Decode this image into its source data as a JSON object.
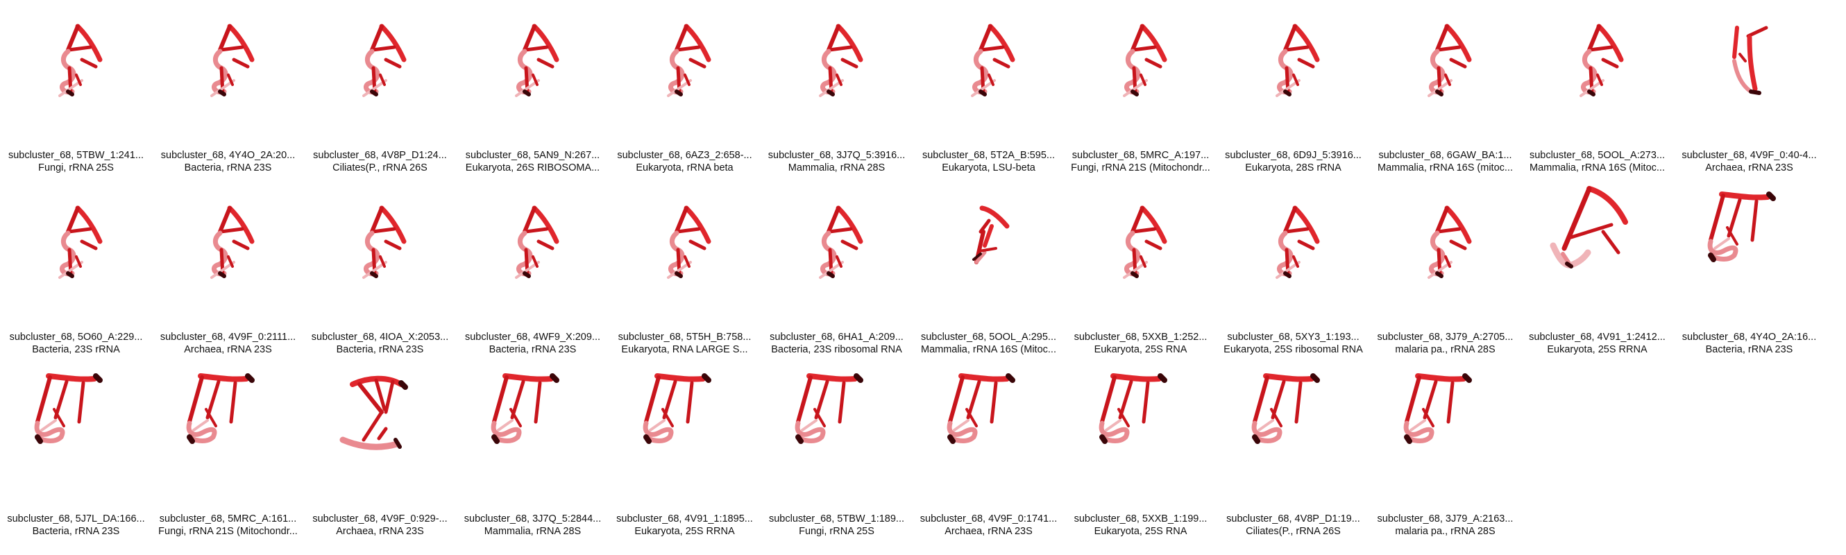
{
  "gallery": {
    "items": [
      {
        "title": "subcluster_68, 5TBW_1:241...",
        "subtitle": "Fungi, rRNA 25S",
        "shape": "a"
      },
      {
        "title": "subcluster_68, 4Y4O_2A:20...",
        "subtitle": "Bacteria, rRNA 23S",
        "shape": "a"
      },
      {
        "title": "subcluster_68, 4V8P_D1:24...",
        "subtitle": "Ciliates(P., rRNA 26S",
        "shape": "a"
      },
      {
        "title": "subcluster_68, 5AN9_N:267...",
        "subtitle": "Eukaryota, 26S RIBOSOMA...",
        "shape": "a"
      },
      {
        "title": "subcluster_68, 6AZ3_2:658-...",
        "subtitle": "Eukaryota, rRNA beta",
        "shape": "a"
      },
      {
        "title": "subcluster_68, 3J7Q_5:3916...",
        "subtitle": "Mammalia, rRNA 28S",
        "shape": "a"
      },
      {
        "title": "subcluster_68, 5T2A_B:595...",
        "subtitle": "Eukaryota, LSU-beta",
        "shape": "a"
      },
      {
        "title": "subcluster_68, 5MRC_A:197...",
        "subtitle": "Fungi, rRNA 21S (Mitochondr...",
        "shape": "a"
      },
      {
        "title": "subcluster_68, 6D9J_5:3916...",
        "subtitle": "Eukaryota, 28S rRNA",
        "shape": "a"
      },
      {
        "title": "subcluster_68, 6GAW_BA:1...",
        "subtitle": "Mammalia, rRNA 16S (mitoc...",
        "shape": "a"
      },
      {
        "title": "subcluster_68, 5OOL_A:273...",
        "subtitle": "Mammalia, rRNA 16S (Mitoc...",
        "shape": "a"
      },
      {
        "title": "subcluster_68, 4V9F_0:40-4...",
        "subtitle": "Archaea, rRNA 23S",
        "shape": "b"
      },
      {
        "title": "subcluster_68, 5O60_A:229...",
        "subtitle": "Bacteria, 23S rRNA",
        "shape": "a"
      },
      {
        "title": "subcluster_68, 4V9F_0:2111...",
        "subtitle": "Archaea, rRNA 23S",
        "shape": "a"
      },
      {
        "title": "subcluster_68, 4IOA_X:2053...",
        "subtitle": "Bacteria, rRNA 23S",
        "shape": "a"
      },
      {
        "title": "subcluster_68, 4WF9_X:209...",
        "subtitle": "Bacteria, rRNA 23S",
        "shape": "a"
      },
      {
        "title": "subcluster_68, 5T5H_B:758...",
        "subtitle": "Eukaryota, RNA LARGE S...",
        "shape": "a"
      },
      {
        "title": "subcluster_68, 6HA1_A:209...",
        "subtitle": "Bacteria, 23S ribosomal RNA",
        "shape": "a"
      },
      {
        "title": "subcluster_68, 5OOL_A:295...",
        "subtitle": "Mammalia, rRNA 16S (Mitoc...",
        "shape": "c"
      },
      {
        "title": "subcluster_68, 5XXB_1:252...",
        "subtitle": "Eukaryota, 25S RNA",
        "shape": "a"
      },
      {
        "title": "subcluster_68, 5XY3_1:193...",
        "subtitle": "Eukaryota, 25S ribosomal RNA",
        "shape": "a"
      },
      {
        "title": "subcluster_68, 3J79_A:2705...",
        "subtitle": "malaria pa., rRNA 28S",
        "shape": "a"
      },
      {
        "title": "subcluster_68, 4V91_1:2412...",
        "subtitle": "Eukaryota, 25S RRNA",
        "shape": "d"
      },
      {
        "title": "subcluster_68, 4Y4O_2A:16...",
        "subtitle": "Bacteria, rRNA 23S",
        "shape": "e"
      },
      {
        "title": "subcluster_68, 5J7L_DA:166...",
        "subtitle": "Bacteria, rRNA 23S",
        "shape": "e"
      },
      {
        "title": "subcluster_68, 5MRC_A:161...",
        "subtitle": "Fungi, rRNA 21S (Mitochondr...",
        "shape": "e"
      },
      {
        "title": "subcluster_68, 4V9F_0:929-...",
        "subtitle": "Archaea, rRNA 23S",
        "shape": "f"
      },
      {
        "title": "subcluster_68, 3J7Q_5:2844...",
        "subtitle": "Mammalia, rRNA 28S",
        "shape": "e"
      },
      {
        "title": "subcluster_68, 4V91_1:1895...",
        "subtitle": "Eukaryota, 25S RRNA",
        "shape": "e"
      },
      {
        "title": "subcluster_68, 5TBW_1:189...",
        "subtitle": "Fungi, rRNA 25S",
        "shape": "e"
      },
      {
        "title": "subcluster_68, 4V9F_0:1741...",
        "subtitle": "Archaea, rRNA 23S",
        "shape": "e"
      },
      {
        "title": "subcluster_68, 5XXB_1:199...",
        "subtitle": "Eukaryota, 25S RNA",
        "shape": "e"
      },
      {
        "title": "subcluster_68, 4V8P_D1:19...",
        "subtitle": "Ciliates(P., rRNA 26S",
        "shape": "e"
      },
      {
        "title": "subcluster_68, 3J79_A:2163...",
        "subtitle": "malaria pa., rRNA 28S",
        "shape": "e"
      }
    ]
  },
  "colors": {
    "strand_dark": "#c8151c",
    "strand_mid": "#e0262c",
    "strand_light": "#e98a90",
    "strand_pale": "#f0b4b8",
    "shadow": "#3a0508",
    "caption_text": "#111111",
    "background": "#ffffff"
  }
}
